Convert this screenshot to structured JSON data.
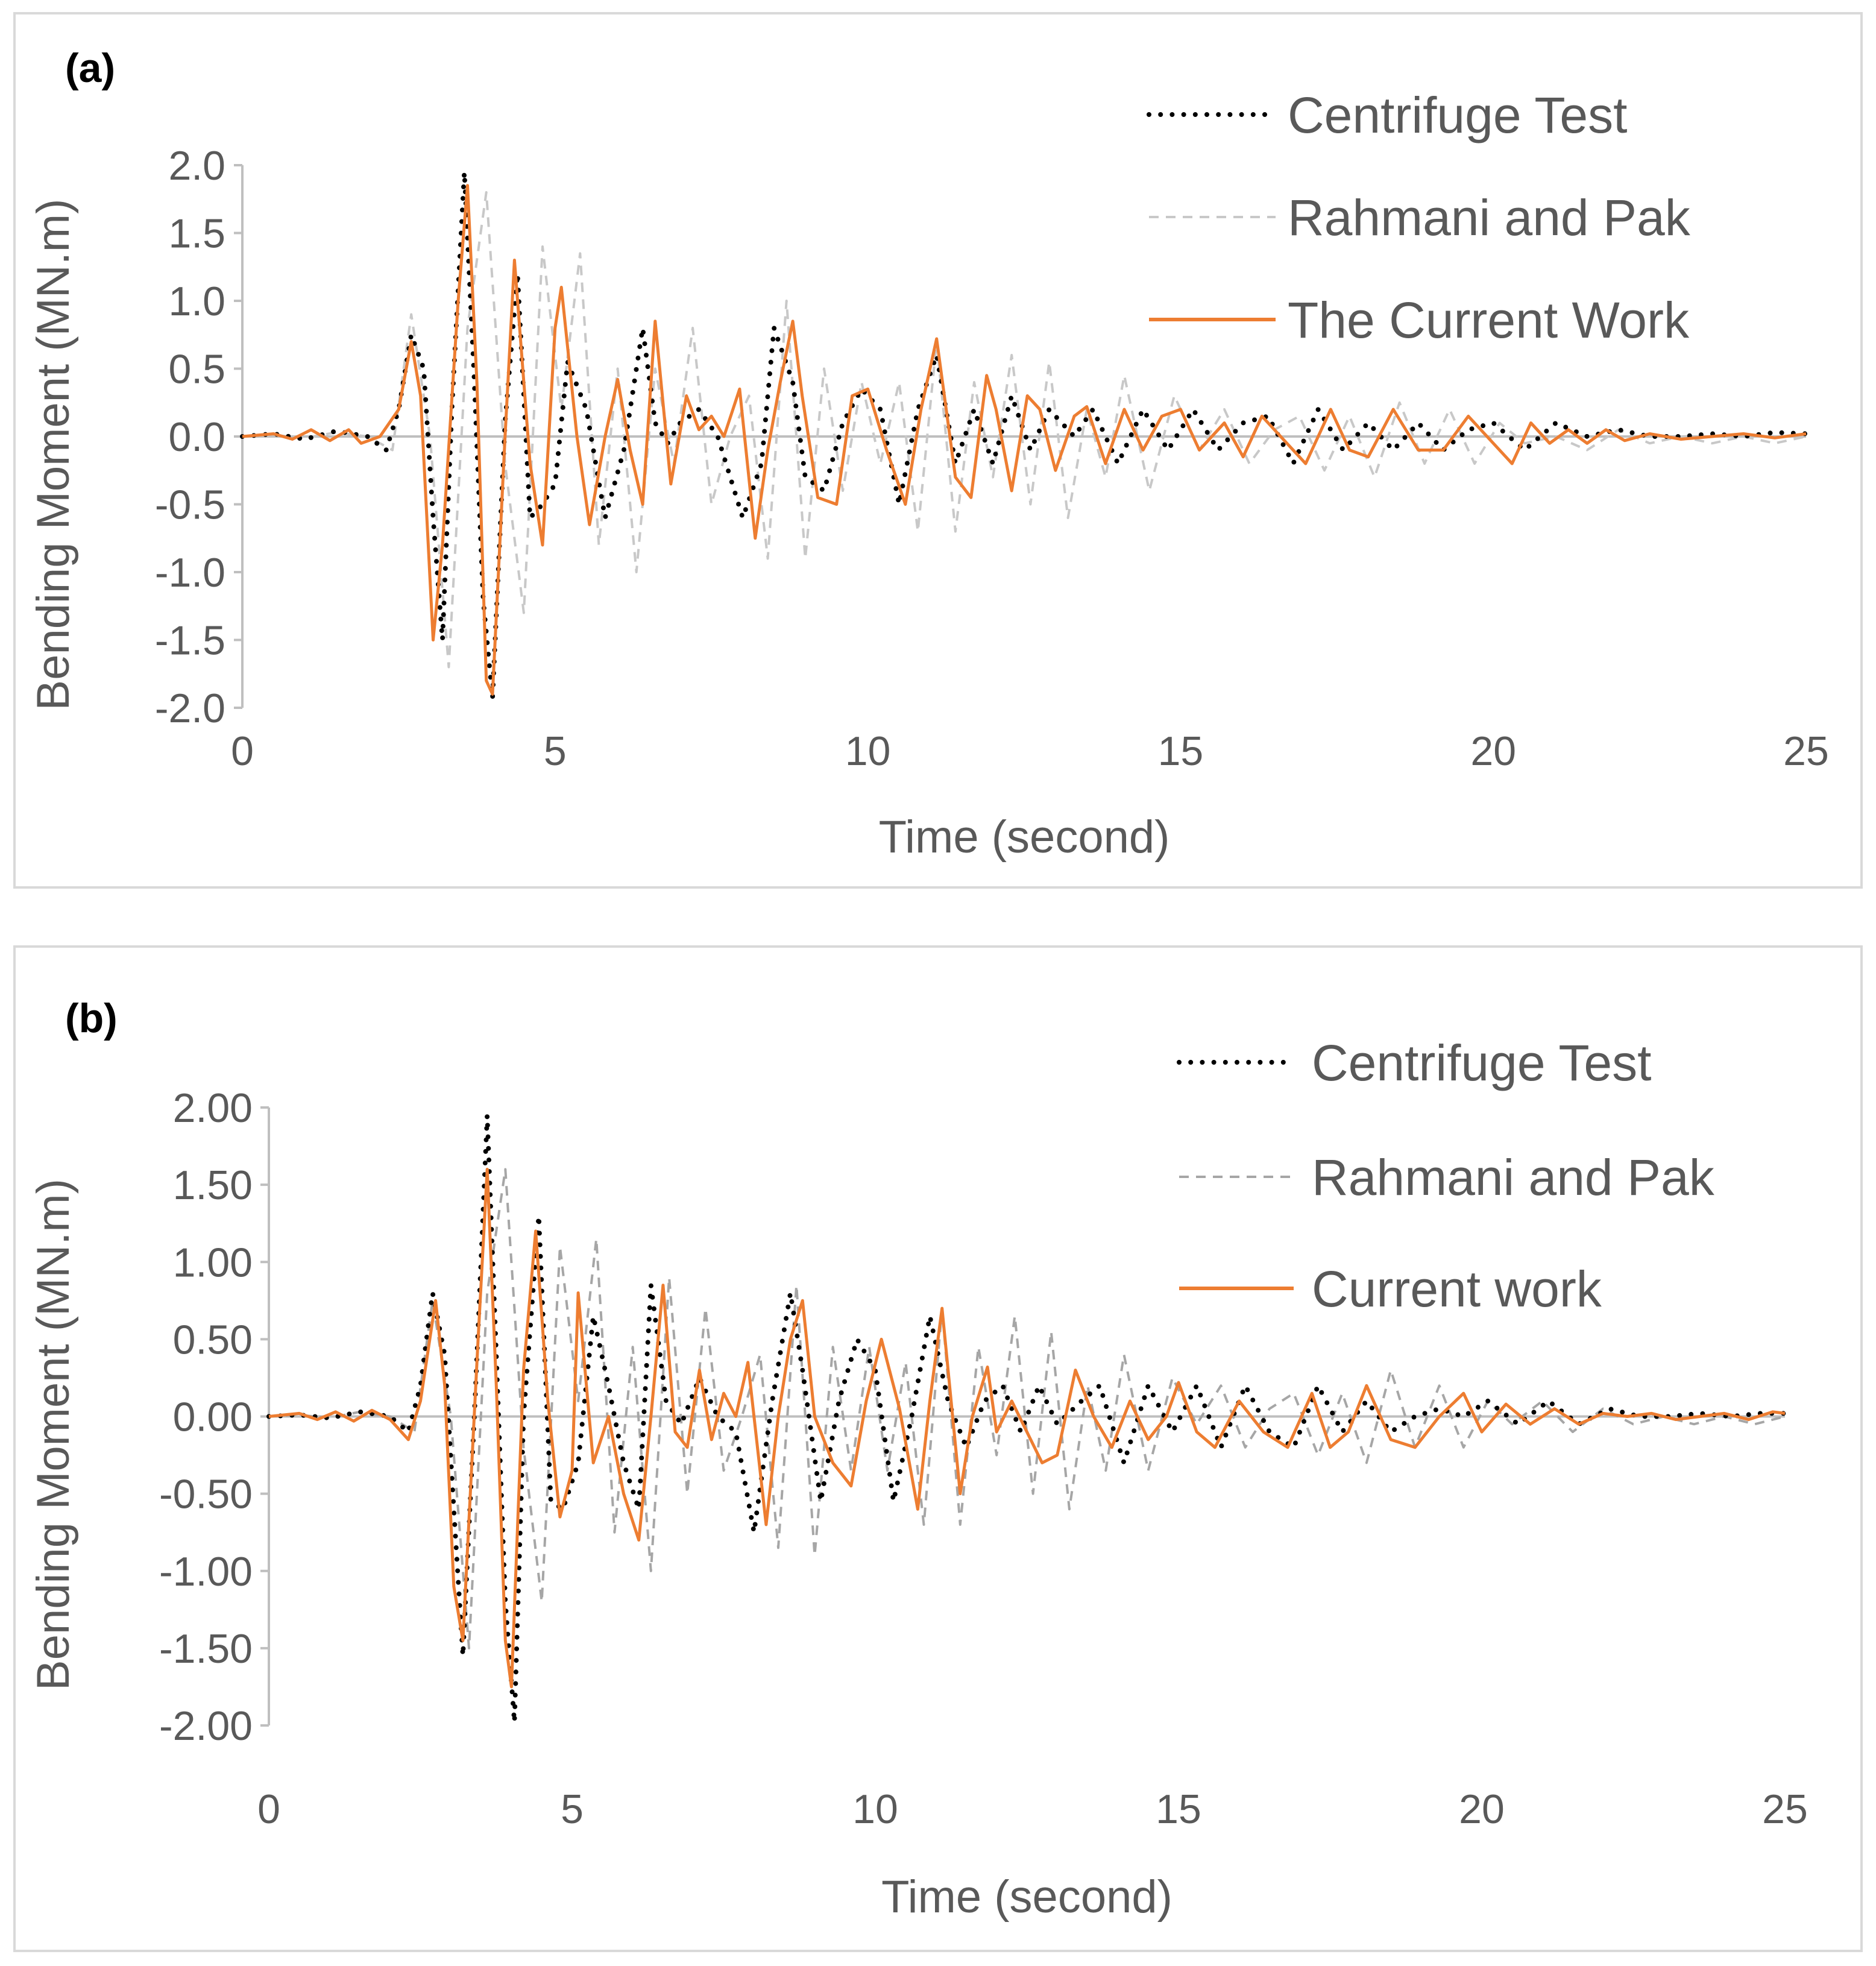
{
  "chart_data": [
    {
      "type": "line",
      "panel_label": "(a)",
      "xlabel": "Time (second)",
      "ylabel": "Bending Moment (MN.m)",
      "xlim": [
        0,
        25
      ],
      "ylim": [
        -2.0,
        2.0
      ],
      "xticks": [
        "0",
        "5",
        "10",
        "15",
        "20",
        "25"
      ],
      "yticks": [
        "2.0",
        "1.5",
        "1.0",
        "0.5",
        "0.0",
        "-0.5",
        "-1.0",
        "-1.5",
        "-2.0"
      ],
      "legend_position": "top-right",
      "grid": false,
      "series": [
        {
          "name": "Centrifuge Test",
          "color": "#000000",
          "style": "dotted",
          "x": [
            0,
            0.5,
            1,
            1.5,
            2,
            2.3,
            2.5,
            2.7,
            2.9,
            3.05,
            3.2,
            3.35,
            3.55,
            3.7,
            3.85,
            4.0,
            4.2,
            4.4,
            4.6,
            4.8,
            5.0,
            5.2,
            5.5,
            5.8,
            6.1,
            6.4,
            6.6,
            6.8,
            7.0,
            7.3,
            7.6,
            8.0,
            8.3,
            8.5,
            8.8,
            9.0,
            9.3,
            9.6,
            9.9,
            10.2,
            10.5,
            10.8,
            11.1,
            11.4,
            11.7,
            12.0,
            12.3,
            12.6,
            12.9,
            13.3,
            13.6,
            14.0,
            14.4,
            14.8,
            15.2,
            15.6,
            16.0,
            16.4,
            16.8,
            17.2,
            17.6,
            18.0,
            18.4,
            18.8,
            19.2,
            19.6,
            20.0,
            20.5,
            21.0,
            21.5,
            22.0,
            22.5,
            23.0,
            23.5,
            24.0,
            24.5,
            25.0
          ],
          "y": [
            0,
            0.02,
            -0.02,
            0.04,
            0,
            -0.1,
            0.2,
            0.75,
            0.5,
            -0.6,
            -1.5,
            0.2,
            1.95,
            0.5,
            -1.2,
            -1.93,
            0.1,
            1.2,
            -0.6,
            -0.5,
            -0.35,
            0.55,
            0.2,
            -0.6,
            -0.1,
            0.8,
            0.1,
            -0.05,
            0.1,
            0.2,
            0.0,
            -0.6,
            -0.2,
            0.8,
            0.4,
            -0.3,
            -0.4,
            0.1,
            0.35,
            0.2,
            -0.5,
            0.2,
            0.6,
            -0.2,
            0.2,
            -0.2,
            0.3,
            -0.1,
            0.2,
            0.0,
            0.2,
            -0.2,
            0.2,
            -0.1,
            0.2,
            -0.1,
            0.1,
            0.15,
            -0.2,
            0.2,
            -0.1,
            0.1,
            -0.1,
            0.1,
            -0.1,
            0.05,
            0.1,
            -0.1,
            0.1,
            0.0,
            0.05,
            0.0,
            0.0,
            0.02,
            0.0,
            0.03,
            0.02
          ]
        },
        {
          "name": "Rahmani and Pak",
          "color": "#c8c8c8",
          "style": "dashed",
          "x": [
            0,
            0.5,
            1,
            1.5,
            2,
            2.4,
            2.7,
            3.0,
            3.3,
            3.6,
            3.9,
            4.2,
            4.5,
            4.8,
            5.1,
            5.4,
            5.7,
            6.0,
            6.3,
            6.6,
            6.9,
            7.2,
            7.5,
            7.8,
            8.1,
            8.4,
            8.7,
            9.0,
            9.3,
            9.6,
            9.9,
            10.2,
            10.5,
            10.8,
            11.1,
            11.4,
            11.7,
            12.0,
            12.3,
            12.6,
            12.9,
            13.2,
            13.5,
            13.8,
            14.1,
            14.5,
            14.9,
            15.3,
            15.7,
            16.1,
            16.5,
            16.9,
            17.3,
            17.7,
            18.1,
            18.5,
            18.9,
            19.3,
            19.7,
            20.1,
            20.5,
            21.0,
            21.5,
            22.0,
            22.5,
            23.0,
            23.5,
            24.0,
            24.5,
            25.0
          ],
          "y": [
            0,
            0.01,
            -0.01,
            0.03,
            0,
            -0.1,
            0.9,
            0.0,
            -1.7,
            0.8,
            1.8,
            -0.2,
            -1.3,
            1.4,
            0.2,
            1.35,
            -0.8,
            0.5,
            -1.0,
            0.5,
            -0.2,
            0.8,
            -0.5,
            0.0,
            0.3,
            -0.9,
            1.0,
            -0.9,
            0.5,
            -0.4,
            0.4,
            -0.2,
            0.4,
            -0.7,
            0.7,
            -0.7,
            0.4,
            -0.3,
            0.6,
            -0.5,
            0.55,
            -0.6,
            0.2,
            -0.3,
            0.45,
            -0.4,
            0.3,
            -0.1,
            0.2,
            -0.2,
            0.05,
            0.15,
            -0.25,
            0.15,
            -0.3,
            0.25,
            -0.2,
            0.2,
            -0.2,
            0.1,
            -0.05,
            0.0,
            -0.1,
            0.05,
            -0.05,
            0.0,
            -0.05,
            0.0,
            -0.05,
            0.0
          ]
        },
        {
          "name": "The Current Work",
          "color": "#ed7d31",
          "style": "solid",
          "x": [
            0,
            0.5,
            0.8,
            1.1,
            1.4,
            1.7,
            1.9,
            2.2,
            2.5,
            2.7,
            2.85,
            3.05,
            3.2,
            3.45,
            3.6,
            3.75,
            3.9,
            4.0,
            4.2,
            4.35,
            4.6,
            4.8,
            5.0,
            5.1,
            5.35,
            5.55,
            5.8,
            6.0,
            6.2,
            6.4,
            6.6,
            6.85,
            7.1,
            7.3,
            7.5,
            7.7,
            7.95,
            8.2,
            8.4,
            8.6,
            8.8,
            8.95,
            9.2,
            9.5,
            9.75,
            10.0,
            10.3,
            10.6,
            10.85,
            11.1,
            11.4,
            11.65,
            11.9,
            12.05,
            12.3,
            12.55,
            12.75,
            13.0,
            13.3,
            13.5,
            13.8,
            14.1,
            14.4,
            14.7,
            15.0,
            15.3,
            15.7,
            16.0,
            16.3,
            16.7,
            17.0,
            17.4,
            17.7,
            18.0,
            18.4,
            18.8,
            19.2,
            19.6,
            20.0,
            20.3,
            20.6,
            20.9,
            21.2,
            21.5,
            21.8,
            22.1,
            22.5,
            23.0,
            23.5,
            24.0,
            24.5,
            25.0
          ],
          "y": [
            0,
            0.02,
            -0.02,
            0.05,
            -0.03,
            0.05,
            -0.05,
            0.0,
            0.2,
            0.7,
            0.3,
            -1.5,
            -0.8,
            1.0,
            1.85,
            0.4,
            -1.8,
            -1.9,
            0.0,
            1.3,
            -0.2,
            -0.8,
            0.8,
            1.1,
            0.0,
            -0.65,
            0.0,
            0.42,
            -0.1,
            -0.5,
            0.85,
            -0.35,
            0.3,
            0.05,
            0.15,
            0.0,
            0.35,
            -0.75,
            -0.1,
            0.4,
            0.85,
            0.3,
            -0.45,
            -0.5,
            0.3,
            0.35,
            -0.1,
            -0.5,
            0.2,
            0.72,
            -0.3,
            -0.45,
            0.45,
            0.2,
            -0.4,
            0.3,
            0.2,
            -0.25,
            0.15,
            0.22,
            -0.2,
            0.2,
            -0.1,
            0.15,
            0.2,
            -0.1,
            0.1,
            -0.15,
            0.15,
            -0.05,
            -0.2,
            0.2,
            -0.1,
            -0.15,
            0.2,
            -0.1,
            -0.1,
            0.15,
            -0.05,
            -0.2,
            0.1,
            -0.05,
            0.05,
            -0.05,
            0.05,
            -0.03,
            0.02,
            -0.02,
            0.0,
            0.02,
            -0.01,
            0.02
          ]
        }
      ]
    },
    {
      "type": "line",
      "panel_label": "(b)",
      "xlabel": "Time (second)",
      "ylabel": "Bending Moment (MN.m)",
      "xlim": [
        0,
        25
      ],
      "ylim": [
        -2.0,
        2.0
      ],
      "xticks": [
        "0",
        "5",
        "10",
        "15",
        "20",
        "25"
      ],
      "yticks": [
        "2.00",
        "1.50",
        "1.00",
        "0.50",
        "0.00",
        "-0.50",
        "-1.00",
        "-1.50",
        "-2.00"
      ],
      "legend_position": "top-right",
      "grid": false,
      "series": [
        {
          "name": "Centrifuge Test",
          "color": "#000000",
          "style": "dotted",
          "x": [
            0,
            0.5,
            1,
            1.5,
            2,
            2.3,
            2.5,
            2.7,
            2.9,
            3.05,
            3.2,
            3.4,
            3.6,
            3.75,
            3.9,
            4.05,
            4.2,
            4.45,
            4.65,
            4.85,
            5.1,
            5.35,
            5.6,
            5.85,
            6.1,
            6.3,
            6.55,
            6.8,
            7.1,
            7.4,
            7.7,
            8.0,
            8.3,
            8.6,
            8.8,
            9.1,
            9.4,
            9.7,
            10.0,
            10.3,
            10.6,
            10.9,
            11.2,
            11.5,
            11.8,
            12.1,
            12.4,
            12.7,
            13.0,
            13.4,
            13.7,
            14.1,
            14.5,
            14.9,
            15.3,
            15.7,
            16.1,
            16.5,
            16.9,
            17.3,
            17.7,
            18.1,
            18.5,
            18.9,
            19.3,
            19.7,
            20.1,
            20.6,
            21.1,
            21.6,
            22.1,
            22.6,
            23.1,
            23.6,
            24.1,
            24.6,
            25.0
          ],
          "y": [
            0,
            0.01,
            -0.01,
            0.03,
            0,
            -0.1,
            0.2,
            0.8,
            0.4,
            -0.6,
            -1.55,
            0.1,
            1.95,
            0.4,
            -1.2,
            -1.98,
            0.0,
            1.3,
            -0.55,
            -0.6,
            -0.3,
            0.65,
            0.2,
            -0.3,
            -0.6,
            0.85,
            0.1,
            -0.05,
            0.25,
            0.0,
            -0.1,
            -0.75,
            0.1,
            0.8,
            0.3,
            -0.55,
            0.1,
            0.5,
            0.3,
            -0.55,
            0.0,
            0.65,
            0.1,
            -0.2,
            0.1,
            0.2,
            -0.1,
            0.2,
            -0.05,
            0.1,
            0.2,
            -0.3,
            0.2,
            -0.1,
            0.2,
            -0.2,
            0.2,
            -0.1,
            -0.2,
            0.2,
            -0.1,
            0.1,
            -0.1,
            0.0,
            0.05,
            0.0,
            0.1,
            -0.05,
            0.1,
            -0.05,
            0.05,
            0.0,
            0.0,
            0.02,
            0.0,
            0.02,
            0.02
          ]
        },
        {
          "name": "Rahmani and Pak",
          "color": "#a6a6a6",
          "style": "dashed",
          "x": [
            0,
            0.5,
            1,
            1.5,
            2,
            2.4,
            2.7,
            3.0,
            3.3,
            3.6,
            3.9,
            4.2,
            4.5,
            4.8,
            5.1,
            5.4,
            5.7,
            6.0,
            6.3,
            6.6,
            6.9,
            7.2,
            7.5,
            7.8,
            8.1,
            8.4,
            8.7,
            9.0,
            9.3,
            9.6,
            9.9,
            10.2,
            10.5,
            10.8,
            11.1,
            11.4,
            11.7,
            12.0,
            12.3,
            12.6,
            12.9,
            13.2,
            13.5,
            13.8,
            14.1,
            14.5,
            14.9,
            15.3,
            15.7,
            16.1,
            16.5,
            16.9,
            17.3,
            17.7,
            18.1,
            18.5,
            18.9,
            19.3,
            19.7,
            20.1,
            20.5,
            21.0,
            21.5,
            22.0,
            22.5,
            23.0,
            23.5,
            24.0,
            24.5,
            25.0
          ],
          "y": [
            0,
            0.01,
            -0.01,
            0.03,
            0,
            -0.1,
            0.75,
            0.0,
            -1.5,
            0.8,
            1.6,
            -0.2,
            -1.2,
            1.1,
            0.1,
            1.15,
            -0.75,
            0.45,
            -1.0,
            0.9,
            -0.5,
            0.7,
            -0.35,
            0.0,
            0.4,
            -0.85,
            0.85,
            -0.9,
            0.45,
            -0.35,
            0.45,
            -0.35,
            0.35,
            -0.7,
            0.7,
            -0.7,
            0.45,
            -0.25,
            0.65,
            -0.5,
            0.55,
            -0.6,
            0.2,
            -0.35,
            0.4,
            -0.35,
            0.25,
            -0.05,
            0.2,
            -0.2,
            0.05,
            0.15,
            -0.25,
            0.15,
            -0.3,
            0.3,
            -0.2,
            0.2,
            -0.2,
            0.1,
            -0.05,
            0.1,
            -0.1,
            0.05,
            -0.05,
            0.0,
            -0.05,
            0.0,
            -0.05,
            0.0
          ]
        },
        {
          "name": "Current work",
          "color": "#ed7d31",
          "style": "solid",
          "x": [
            0,
            0.5,
            0.8,
            1.1,
            1.4,
            1.7,
            2.0,
            2.3,
            2.5,
            2.75,
            2.9,
            3.05,
            3.2,
            3.45,
            3.6,
            3.75,
            3.9,
            4.0,
            4.2,
            4.4,
            4.6,
            4.8,
            5.0,
            5.1,
            5.35,
            5.6,
            5.85,
            6.1,
            6.3,
            6.5,
            6.7,
            6.9,
            7.1,
            7.3,
            7.5,
            7.7,
            7.9,
            8.2,
            8.4,
            8.6,
            8.8,
            9.0,
            9.3,
            9.6,
            9.85,
            10.1,
            10.4,
            10.7,
            10.9,
            11.1,
            11.4,
            11.6,
            11.85,
            12.0,
            12.25,
            12.5,
            12.75,
            13.0,
            13.3,
            13.6,
            13.9,
            14.2,
            14.5,
            14.8,
            15.0,
            15.3,
            15.6,
            16.0,
            16.4,
            16.8,
            17.2,
            17.5,
            17.8,
            18.1,
            18.5,
            18.9,
            19.3,
            19.7,
            20.0,
            20.4,
            20.8,
            21.2,
            21.6,
            22.0,
            22.4,
            22.8,
            23.2,
            23.6,
            24.0,
            24.4,
            24.8,
            25.0
          ],
          "y": [
            0,
            0.02,
            -0.02,
            0.03,
            -0.03,
            0.04,
            -0.02,
            -0.15,
            0.1,
            0.75,
            0.2,
            -1.1,
            -1.45,
            0.5,
            1.6,
            0.2,
            -1.45,
            -1.75,
            0.3,
            1.2,
            0.1,
            -0.65,
            -0.35,
            0.8,
            -0.3,
            0.0,
            -0.5,
            -0.8,
            0.0,
            0.85,
            -0.1,
            -0.2,
            0.3,
            -0.15,
            0.15,
            0.0,
            0.35,
            -0.7,
            0.0,
            0.5,
            0.75,
            0.0,
            -0.3,
            -0.45,
            0.1,
            0.5,
            0.05,
            -0.6,
            0.1,
            0.7,
            -0.5,
            0.0,
            0.32,
            -0.1,
            0.1,
            -0.1,
            -0.3,
            -0.25,
            0.3,
            0.0,
            -0.2,
            0.1,
            -0.15,
            0.0,
            0.22,
            -0.1,
            -0.2,
            0.1,
            -0.1,
            -0.2,
            0.15,
            -0.2,
            -0.1,
            0.2,
            -0.15,
            -0.2,
            0.0,
            0.15,
            -0.1,
            0.08,
            -0.05,
            0.05,
            -0.05,
            0.02,
            0.0,
            0.02,
            -0.02,
            0.0,
            0.02,
            -0.02,
            0.03,
            0.02
          ]
        }
      ]
    }
  ]
}
